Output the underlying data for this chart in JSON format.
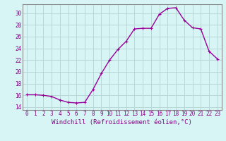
{
  "x": [
    0,
    1,
    2,
    3,
    4,
    5,
    6,
    7,
    8,
    9,
    10,
    11,
    12,
    13,
    14,
    15,
    16,
    17,
    18,
    19,
    20,
    21,
    22,
    23
  ],
  "y": [
    16.1,
    16.1,
    16.0,
    15.8,
    15.2,
    14.8,
    14.7,
    14.8,
    17.0,
    19.7,
    22.0,
    23.8,
    25.2,
    27.3,
    27.4,
    27.4,
    29.8,
    30.8,
    30.9,
    28.8,
    27.5,
    27.3,
    23.5,
    22.2
  ],
  "line_color": "#990099",
  "marker": "+",
  "marker_size": 3,
  "bg_color": "#d8f5f5",
  "grid_color": "#b8d8d8",
  "xlabel": "Windchill (Refroidissement éolien,°C)",
  "xlim": [
    -0.5,
    23.5
  ],
  "ylim": [
    13.5,
    31.5
  ],
  "yticks": [
    14,
    16,
    18,
    20,
    22,
    24,
    26,
    28,
    30
  ],
  "xticks": [
    0,
    1,
    2,
    3,
    4,
    5,
    6,
    7,
    8,
    9,
    10,
    11,
    12,
    13,
    14,
    15,
    16,
    17,
    18,
    19,
    20,
    21,
    22,
    23
  ],
  "tick_label_fontsize": 5.5,
  "xlabel_fontsize": 6.5,
  "line_width": 1.0,
  "spine_color": "#888888"
}
